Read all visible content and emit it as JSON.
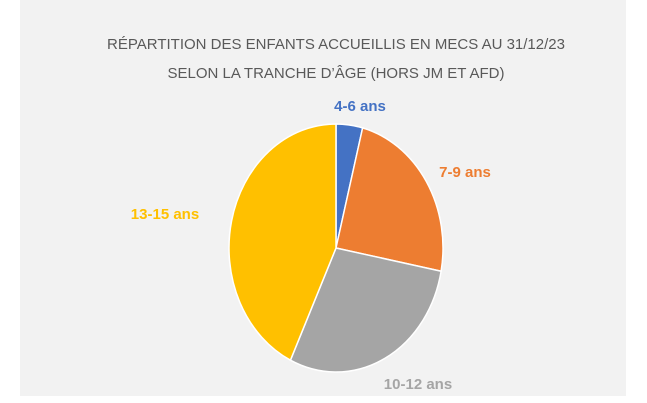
{
  "chart_data": {
    "type": "pie",
    "title": [
      "RÉPARTITION DES ENFANTS ACCUEILLIS EN MECS AU 31/12/23",
      "SELON LA TRANCHE D’ÂGE (HORS JM ET AFD)"
    ],
    "categories": [
      "4-6 ans",
      "7-9 ans",
      "10-12 ans",
      "13-15 ans"
    ],
    "values": [
      4,
      24,
      29,
      43
    ],
    "colors": [
      "#4472c4",
      "#ed7d31",
      "#a5a5a5",
      "#ffc000"
    ]
  }
}
